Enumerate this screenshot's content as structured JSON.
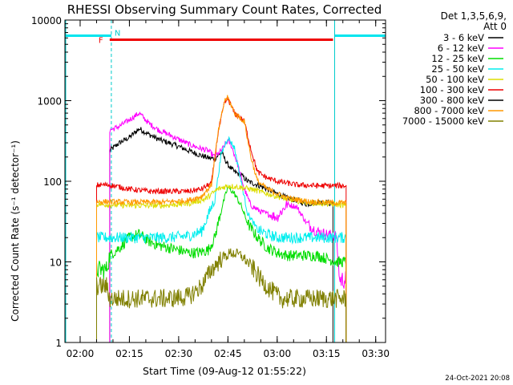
{
  "chart_data": {
    "type": "line",
    "title": "RHESSI Observing Summary Count Rates, Corrected",
    "xlabel": "Start Time (09-Aug-12 01:55:22)",
    "ylabel": "Corrected Count Rate (s⁻¹ detector⁻¹)",
    "yscale": "log",
    "ylim": [
      1,
      10000
    ],
    "xlim": [
      "01:55:22",
      "03:33:00"
    ],
    "x_ticks": [
      "02:00",
      "02:15",
      "02:30",
      "02:45",
      "03:00",
      "03:15",
      "03:30"
    ],
    "y_ticks": [
      "1",
      "10",
      "100",
      "1000",
      "10000"
    ],
    "legend_header": [
      "Det 1,3,5,6,9,",
      "Att 0"
    ],
    "legend_position": "right",
    "timestamp": "24-Oct-2021 20:08",
    "flags": [
      {
        "label": "F",
        "color": "#ee0000",
        "start": "02:09:00",
        "end": "03:17:00",
        "level": 5700
      },
      {
        "label": "N",
        "color": "#00cccc"
      }
    ],
    "night_intervals": [
      {
        "start": "01:55:22",
        "end": "02:09:30"
      },
      {
        "start": "03:17:30",
        "end": "03:33:00"
      }
    ],
    "series": [
      {
        "name": "3 - 6 keV",
        "color": "#000000",
        "start": "02:09:00",
        "end": "03:17:00",
        "points": [
          [
            "02:09:00",
            240
          ],
          [
            "02:12:00",
            300
          ],
          [
            "02:15:00",
            350
          ],
          [
            "02:18:00",
            450
          ],
          [
            "02:21:00",
            380
          ],
          [
            "02:24:00",
            330
          ],
          [
            "02:27:00",
            300
          ],
          [
            "02:30:00",
            270
          ],
          [
            "02:33:00",
            240
          ],
          [
            "02:36:00",
            215
          ],
          [
            "02:39:00",
            195
          ],
          [
            "02:41:00",
            190
          ],
          [
            "02:43:00",
            230
          ],
          [
            "02:45:00",
            160
          ],
          [
            "02:47:00",
            130
          ],
          [
            "02:49:00",
            120
          ],
          [
            "02:51:00",
            100
          ],
          [
            "02:54:00",
            90
          ],
          [
            "02:57:00",
            80
          ],
          [
            "03:00:00",
            70
          ],
          [
            "03:03:00",
            62
          ],
          [
            "03:06:00",
            58
          ],
          [
            "03:09:00",
            52
          ],
          [
            "03:12:00",
            55
          ],
          [
            "03:15:00",
            55
          ],
          [
            "03:17:00",
            52
          ]
        ]
      },
      {
        "name": "6 - 12 keV",
        "color": "#ff00ff",
        "start": "02:09:00",
        "end": "03:21:00",
        "points": [
          [
            "02:09:00",
            430
          ],
          [
            "02:12:00",
            480
          ],
          [
            "02:15:00",
            580
          ],
          [
            "02:18:00",
            700
          ],
          [
            "02:21:00",
            520
          ],
          [
            "02:24:00",
            430
          ],
          [
            "02:27:00",
            380
          ],
          [
            "02:30:00",
            330
          ],
          [
            "02:33:00",
            290
          ],
          [
            "02:36:00",
            260
          ],
          [
            "02:39:00",
            240
          ],
          [
            "02:41:00",
            200
          ],
          [
            "02:43:00",
            240
          ],
          [
            "02:45:00",
            320
          ],
          [
            "02:46:00",
            280
          ],
          [
            "02:48:00",
            160
          ],
          [
            "02:50:00",
            80
          ],
          [
            "02:52:00",
            50
          ],
          [
            "02:55:00",
            42
          ],
          [
            "02:58:00",
            38
          ],
          [
            "03:00:00",
            36
          ],
          [
            "03:03:00",
            52
          ],
          [
            "03:06:00",
            48
          ],
          [
            "03:09:00",
            30
          ],
          [
            "03:12:00",
            24
          ],
          [
            "03:15:00",
            22
          ],
          [
            "03:18:00",
            21
          ],
          [
            "03:19:00",
            6
          ],
          [
            "03:21:00",
            6
          ]
        ]
      },
      {
        "name": "12 - 25 keV",
        "color": "#00dd00",
        "start": "02:05:00",
        "end": "03:21:00",
        "points": [
          [
            "02:05:00",
            8
          ],
          [
            "02:08:00",
            8
          ],
          [
            "02:09:00",
            12
          ],
          [
            "02:12:00",
            15
          ],
          [
            "02:15:00",
            20
          ],
          [
            "02:18:00",
            22
          ],
          [
            "02:21:00",
            18
          ],
          [
            "02:24:00",
            16
          ],
          [
            "02:27:00",
            15
          ],
          [
            "02:30:00",
            14
          ],
          [
            "02:33:00",
            13
          ],
          [
            "02:36:00",
            13
          ],
          [
            "02:39:00",
            14
          ],
          [
            "02:41:00",
            20
          ],
          [
            "02:43:00",
            45
          ],
          [
            "02:45:00",
            85
          ],
          [
            "02:47:00",
            70
          ],
          [
            "02:49:00",
            50
          ],
          [
            "02:51:00",
            30
          ],
          [
            "02:54:00",
            20
          ],
          [
            "02:57:00",
            15
          ],
          [
            "03:00:00",
            13
          ],
          [
            "03:03:00",
            12
          ],
          [
            "03:06:00",
            12
          ],
          [
            "03:09:00",
            12
          ],
          [
            "03:12:00",
            12
          ],
          [
            "03:15:00",
            11
          ],
          [
            "03:18:00",
            10
          ],
          [
            "03:21:00",
            10
          ]
        ]
      },
      {
        "name": "25 - 50 keV",
        "color": "#00eeee",
        "start": "02:05:00",
        "end": "03:21:00",
        "points": [
          [
            "02:05:00",
            20
          ],
          [
            "02:09:00",
            20
          ],
          [
            "02:15:00",
            20
          ],
          [
            "02:21:00",
            20
          ],
          [
            "02:27:00",
            20
          ],
          [
            "02:33:00",
            21
          ],
          [
            "02:37:00",
            24
          ],
          [
            "02:41:00",
            60
          ],
          [
            "02:43:00",
            220
          ],
          [
            "02:45:00",
            350
          ],
          [
            "02:47:00",
            260
          ],
          [
            "02:49:00",
            100
          ],
          [
            "02:51:00",
            40
          ],
          [
            "02:54:00",
            25
          ],
          [
            "02:57:00",
            22
          ],
          [
            "03:00:00",
            20
          ],
          [
            "03:06:00",
            20
          ],
          [
            "03:12:00",
            20
          ],
          [
            "03:18:00",
            20
          ],
          [
            "03:21:00",
            20
          ]
        ]
      },
      {
        "name": "50 - 100 keV",
        "color": "#dddd00",
        "start": "02:05:00",
        "end": "03:21:00",
        "points": [
          [
            "02:05:00",
            52
          ],
          [
            "02:15:00",
            50
          ],
          [
            "02:25:00",
            50
          ],
          [
            "02:33:00",
            53
          ],
          [
            "02:38:00",
            60
          ],
          [
            "02:42:00",
            80
          ],
          [
            "02:45:00",
            88
          ],
          [
            "02:48:00",
            85
          ],
          [
            "02:52:00",
            80
          ],
          [
            "02:57:00",
            70
          ],
          [
            "03:03:00",
            60
          ],
          [
            "03:10:00",
            54
          ],
          [
            "03:17:00",
            52
          ],
          [
            "03:21:00",
            50
          ]
        ]
      },
      {
        "name": "100 - 300 keV",
        "color": "#ee0000",
        "start": "02:05:00",
        "end": "03:21:00",
        "points": [
          [
            "02:05:00",
            90
          ],
          [
            "02:09:00",
            90
          ],
          [
            "02:15:00",
            80
          ],
          [
            "02:21:00",
            75
          ],
          [
            "02:27:00",
            75
          ],
          [
            "02:33:00",
            75
          ],
          [
            "02:37:00",
            80
          ],
          [
            "02:40:00",
            95
          ],
          [
            "02:42:00",
            400
          ],
          [
            "02:44:00",
            950
          ],
          [
            "02:45:00",
            1050
          ],
          [
            "02:47:00",
            700
          ],
          [
            "02:49:00",
            600
          ],
          [
            "02:50:00",
            550
          ],
          [
            "02:52:00",
            250
          ],
          [
            "02:54:00",
            130
          ],
          [
            "02:57:00",
            110
          ],
          [
            "03:00:00",
            100
          ],
          [
            "03:06:00",
            90
          ],
          [
            "03:12:00",
            88
          ],
          [
            "03:18:00",
            88
          ],
          [
            "03:21:00",
            88
          ]
        ]
      },
      {
        "name": "300 - 800 keV",
        "color": "#000000",
        "start": "02:45:00",
        "end": "02:45:01",
        "points": []
      },
      {
        "name": "800 - 7000 keV",
        "color": "#ff9900",
        "start": "02:05:00",
        "end": "03:21:00",
        "points": [
          [
            "02:05:00",
            56
          ],
          [
            "02:15:00",
            55
          ],
          [
            "02:25:00",
            55
          ],
          [
            "02:33:00",
            58
          ],
          [
            "02:37:00",
            65
          ],
          [
            "02:40:00",
            90
          ],
          [
            "02:42:00",
            400
          ],
          [
            "02:44:00",
            1000
          ],
          [
            "02:45:00",
            1100
          ],
          [
            "02:47:00",
            700
          ],
          [
            "02:49:00",
            600
          ],
          [
            "02:50:00",
            550
          ],
          [
            "02:52:00",
            200
          ],
          [
            "02:54:00",
            100
          ],
          [
            "02:57:00",
            80
          ],
          [
            "03:03:00",
            62
          ],
          [
            "03:10:00",
            56
          ],
          [
            "03:17:00",
            54
          ],
          [
            "03:21:00",
            54
          ]
        ]
      },
      {
        "name": "7000 - 15000 keV",
        "color": "#808000",
        "start": "02:05:00",
        "end": "03:21:00",
        "points": [
          [
            "02:05:00",
            5
          ],
          [
            "02:08:00",
            5
          ],
          [
            "02:09:00",
            3.5
          ],
          [
            "02:15:00",
            3.5
          ],
          [
            "02:21:00",
            3.5
          ],
          [
            "02:27:00",
            3.5
          ],
          [
            "02:33:00",
            3.7
          ],
          [
            "02:37:00",
            5
          ],
          [
            "02:40:00",
            8
          ],
          [
            "02:43:00",
            11
          ],
          [
            "02:46:00",
            13
          ],
          [
            "02:49:00",
            12
          ],
          [
            "02:52:00",
            9
          ],
          [
            "02:55:00",
            6
          ],
          [
            "02:58:00",
            4.5
          ],
          [
            "03:01:00",
            3.5
          ],
          [
            "03:06:00",
            3.5
          ],
          [
            "03:12:00",
            3.5
          ],
          [
            "03:18:00",
            3.5
          ],
          [
            "03:21:00",
            3.5
          ]
        ]
      }
    ]
  }
}
